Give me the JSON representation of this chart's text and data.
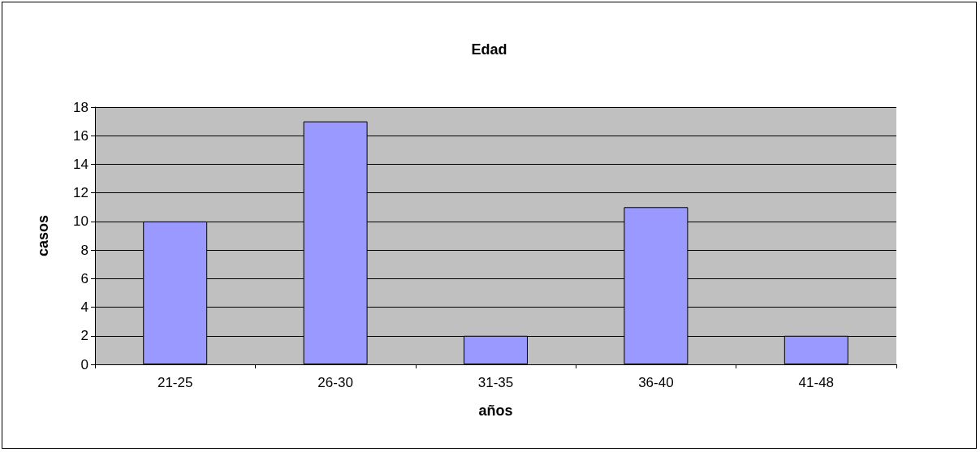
{
  "chart_data": {
    "type": "bar",
    "title": "Edad",
    "xlabel": "años",
    "ylabel": "casos",
    "categories": [
      "21-25",
      "26-30",
      "31-35",
      "36-40",
      "41-48"
    ],
    "values": [
      10,
      17,
      2,
      11,
      2
    ],
    "color": "#9999ff",
    "ylim": [
      0,
      18
    ],
    "yticks": [
      0,
      2,
      4,
      6,
      8,
      10,
      12,
      14,
      16,
      18
    ],
    "grid": "y"
  }
}
